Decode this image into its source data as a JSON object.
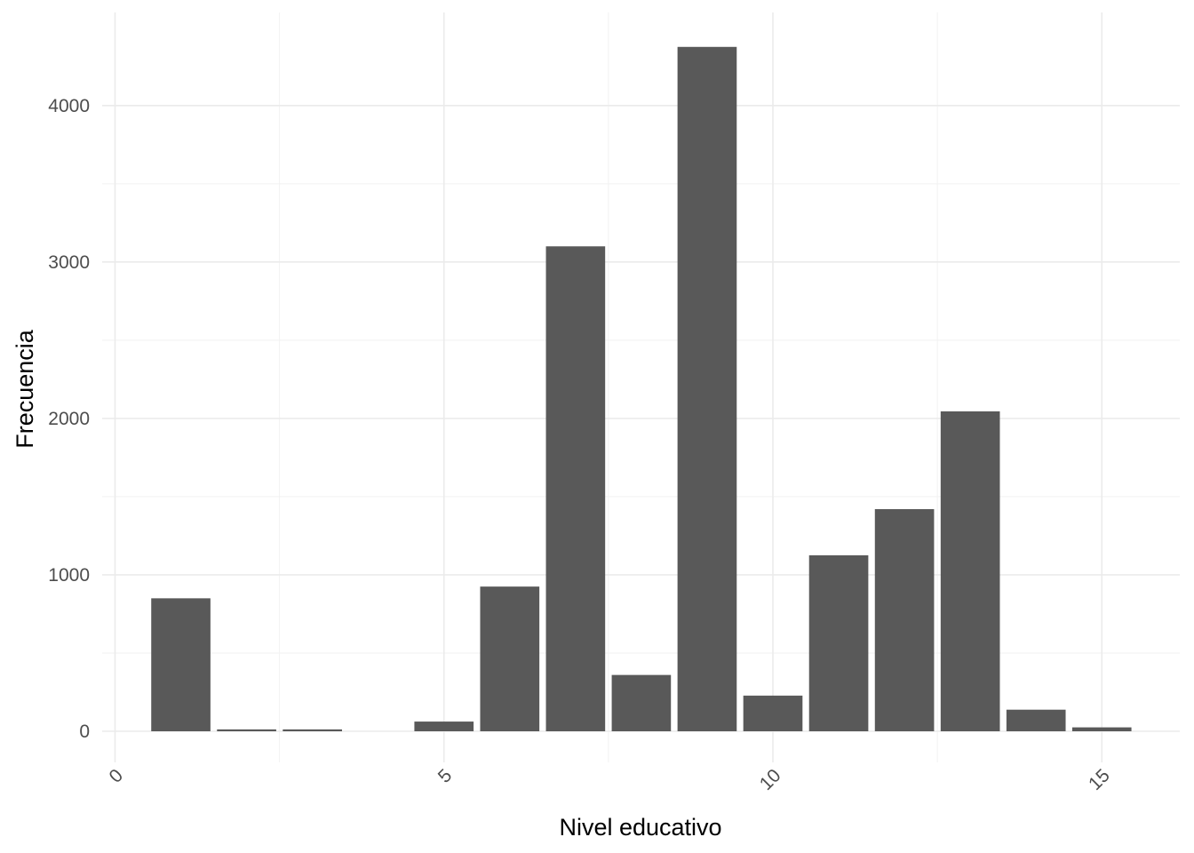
{
  "chart_data": {
    "type": "bar",
    "xlabel": "Nivel educativo",
    "ylabel": "Frecuencia",
    "x": [
      1,
      2,
      3,
      4,
      5,
      6,
      7,
      8,
      9,
      10,
      11,
      12,
      13,
      14,
      15
    ],
    "values": [
      850,
      12,
      12,
      0,
      62,
      925,
      3100,
      360,
      4375,
      228,
      1125,
      1420,
      2045,
      138,
      25
    ],
    "xlim": [
      0,
      16
    ],
    "ylim": [
      0,
      4500
    ],
    "x_ticks": [
      "0",
      "5",
      "10",
      "15"
    ],
    "y_ticks": [
      "0",
      "1000",
      "2000",
      "3000",
      "4000"
    ],
    "bar_color": "#595959",
    "grid": true,
    "legend": "none"
  }
}
